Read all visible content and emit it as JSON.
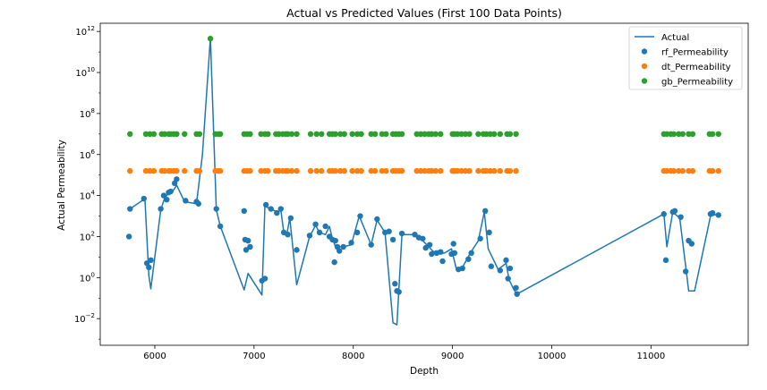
{
  "chart_data": {
    "type": "scatter",
    "title": "Actual vs Predicted Values (First 100 Data Points)",
    "xlabel": "Depth",
    "ylabel": "Actual Permeability",
    "x_scale": "linear",
    "y_scale": "log",
    "xlim": [
      5450,
      11980
    ],
    "ylim_log10": [
      -3.3,
      12.4
    ],
    "x_ticks": [
      6000,
      7000,
      8000,
      9000,
      10000,
      11000
    ],
    "x_tick_labels": [
      "6000",
      "7000",
      "8000",
      "9000",
      "10000",
      "11000"
    ],
    "y_ticks_log10": [
      -2,
      0,
      2,
      4,
      6,
      8,
      10,
      12
    ],
    "y_tick_labels": [
      {
        "base": "10",
        "exp": "−2"
      },
      {
        "base": "10",
        "exp": "0"
      },
      {
        "base": "10",
        "exp": "2"
      },
      {
        "base": "10",
        "exp": "4"
      },
      {
        "base": "10",
        "exp": "6"
      },
      {
        "base": "10",
        "exp": "8"
      },
      {
        "base": "10",
        "exp": "10"
      },
      {
        "base": "10",
        "exp": "12"
      }
    ],
    "grid": false,
    "legend_position": "top-right",
    "legend": [
      {
        "label": "Actual",
        "kind": "line",
        "color": "#1f77b4"
      },
      {
        "label": "rf_Permeability",
        "kind": "marker",
        "color": "#1f77b4"
      },
      {
        "label": "dt_Permeability",
        "kind": "marker",
        "color": "#ff7f0e"
      },
      {
        "label": "gb_Permeability",
        "kind": "marker",
        "color": "#2ca02c"
      }
    ],
    "series": [
      {
        "name": "Actual",
        "kind": "line",
        "color": "#1f77b4",
        "points": [
          [
            5750,
            3.35
          ],
          [
            5900,
            3.85
          ],
          [
            5940,
            0.1
          ],
          [
            5960,
            -0.55
          ],
          [
            6060,
            3.3
          ],
          [
            6100,
            3.9
          ],
          [
            6140,
            4.1
          ],
          [
            6180,
            4.2
          ],
          [
            6220,
            4.5
          ],
          [
            6300,
            3.7
          ],
          [
            6420,
            3.6
          ],
          [
            6480,
            6.0
          ],
          [
            6560,
            11.7
          ],
          [
            6620,
            3.3
          ],
          [
            6660,
            2.5
          ],
          [
            6900,
            -0.6
          ],
          [
            6940,
            0.2
          ],
          [
            7080,
            -0.85
          ],
          [
            7110,
            3.5
          ],
          [
            7160,
            3.35
          ],
          [
            7240,
            3.2
          ],
          [
            7270,
            3.3
          ],
          [
            7300,
            2.2
          ],
          [
            7330,
            2.1
          ],
          [
            7360,
            2.9
          ],
          [
            7430,
            -0.35
          ],
          [
            7560,
            2.0
          ],
          [
            7620,
            2.55
          ],
          [
            7660,
            2.2
          ],
          [
            7720,
            2.1
          ],
          [
            7760,
            2.5
          ],
          [
            7790,
            1.9
          ],
          [
            7820,
            1.5
          ],
          [
            7900,
            1.5
          ],
          [
            7980,
            1.6
          ],
          [
            8060,
            3.0
          ],
          [
            8180,
            1.6
          ],
          [
            8240,
            2.8
          ],
          [
            8320,
            2.2
          ],
          [
            8400,
            -2.2
          ],
          [
            8440,
            -2.3
          ],
          [
            8490,
            2.1
          ],
          [
            8620,
            2.1
          ],
          [
            8680,
            1.9
          ],
          [
            8760,
            1.5
          ],
          [
            8800,
            1.3
          ],
          [
            8860,
            1.15
          ],
          [
            8920,
            1.2
          ],
          [
            8990,
            1.4
          ],
          [
            9040,
            0.4
          ],
          [
            9100,
            0.5
          ],
          [
            9180,
            1.2
          ],
          [
            9260,
            1.8
          ],
          [
            9320,
            3.2
          ],
          [
            9360,
            1.4
          ],
          [
            9460,
            0.4
          ],
          [
            9540,
            0.7
          ],
          [
            9570,
            -0.1
          ],
          [
            9620,
            -0.6
          ],
          [
            9650,
            -0.8
          ],
          [
            11130,
            3.1
          ],
          [
            11160,
            1.5
          ],
          [
            11220,
            3.2
          ],
          [
            11290,
            2.9
          ],
          [
            11380,
            -0.65
          ],
          [
            11440,
            -0.65
          ],
          [
            11600,
            3.0
          ],
          [
            11680,
            3.1
          ]
        ]
      },
      {
        "name": "rf_Permeability",
        "kind": "marker",
        "color": "#1f77b4",
        "points": [
          [
            5740,
            2.0
          ],
          [
            5750,
            3.35
          ],
          [
            5890,
            3.85
          ],
          [
            5920,
            0.7
          ],
          [
            5940,
            0.5
          ],
          [
            5960,
            0.85
          ],
          [
            6060,
            3.35
          ],
          [
            6090,
            4.0
          ],
          [
            6120,
            3.8
          ],
          [
            6140,
            4.15
          ],
          [
            6160,
            4.2
          ],
          [
            6200,
            4.6
          ],
          [
            6220,
            4.8
          ],
          [
            6310,
            3.75
          ],
          [
            6420,
            3.7
          ],
          [
            6440,
            3.6
          ],
          [
            6620,
            3.35
          ],
          [
            6660,
            2.5
          ],
          [
            6900,
            3.25
          ],
          [
            6910,
            1.85
          ],
          [
            6920,
            1.35
          ],
          [
            6940,
            1.8
          ],
          [
            6960,
            1.5
          ],
          [
            7080,
            -0.15
          ],
          [
            7110,
            -0.05
          ],
          [
            7120,
            3.55
          ],
          [
            7170,
            3.35
          ],
          [
            7230,
            3.15
          ],
          [
            7270,
            3.35
          ],
          [
            7300,
            2.2
          ],
          [
            7340,
            2.1
          ],
          [
            7370,
            2.9
          ],
          [
            7430,
            1.35
          ],
          [
            7560,
            2.05
          ],
          [
            7620,
            2.6
          ],
          [
            7660,
            2.2
          ],
          [
            7720,
            2.5
          ],
          [
            7760,
            2.0
          ],
          [
            7790,
            1.85
          ],
          [
            7820,
            1.8
          ],
          [
            7810,
            0.75
          ],
          [
            7840,
            1.5
          ],
          [
            7860,
            1.3
          ],
          [
            7900,
            1.5
          ],
          [
            7980,
            1.7
          ],
          [
            8040,
            2.2
          ],
          [
            8070,
            3.0
          ],
          [
            8180,
            1.6
          ],
          [
            8240,
            2.85
          ],
          [
            8320,
            2.2
          ],
          [
            8360,
            2.25
          ],
          [
            8400,
            1.85
          ],
          [
            8420,
            -0.3
          ],
          [
            8440,
            -0.65
          ],
          [
            8460,
            -0.7
          ],
          [
            8490,
            2.15
          ],
          [
            8620,
            2.1
          ],
          [
            8660,
            1.95
          ],
          [
            8700,
            1.9
          ],
          [
            8730,
            1.45
          ],
          [
            8770,
            1.6
          ],
          [
            8790,
            1.15
          ],
          [
            8840,
            1.2
          ],
          [
            8880,
            1.25
          ],
          [
            8900,
            0.8
          ],
          [
            8990,
            1.15
          ],
          [
            9010,
            1.65
          ],
          [
            9020,
            1.2
          ],
          [
            9060,
            0.4
          ],
          [
            9100,
            0.45
          ],
          [
            9160,
            0.9
          ],
          [
            9190,
            1.2
          ],
          [
            9280,
            1.9
          ],
          [
            9330,
            3.25
          ],
          [
            9370,
            2.2
          ],
          [
            9390,
            0.55
          ],
          [
            9480,
            0.35
          ],
          [
            9540,
            0.85
          ],
          [
            9560,
            -0.05
          ],
          [
            9580,
            0.45
          ],
          [
            9640,
            -0.5
          ],
          [
            9650,
            -0.8
          ],
          [
            11130,
            3.1
          ],
          [
            11150,
            0.85
          ],
          [
            11220,
            3.2
          ],
          [
            11240,
            3.25
          ],
          [
            11300,
            2.95
          ],
          [
            11350,
            0.3
          ],
          [
            11380,
            1.8
          ],
          [
            11410,
            1.65
          ],
          [
            11600,
            3.1
          ],
          [
            11620,
            3.15
          ],
          [
            11680,
            3.05
          ]
        ]
      },
      {
        "name": "dt_Permeability",
        "kind": "marker",
        "color": "#ff7f0e",
        "x": [
          5750,
          5910,
          5950,
          5990,
          6070,
          6100,
          6140,
          6160,
          6190,
          6220,
          6300,
          6420,
          6450,
          6610,
          6640,
          6660,
          6900,
          6930,
          6960,
          7070,
          7110,
          7140,
          7220,
          7250,
          7290,
          7320,
          7340,
          7380,
          7430,
          7570,
          7630,
          7680,
          7760,
          7790,
          7820,
          7870,
          7910,
          7990,
          8040,
          8080,
          8180,
          8220,
          8290,
          8330,
          8400,
          8430,
          8460,
          8490,
          8640,
          8680,
          8720,
          8760,
          8790,
          8830,
          8880,
          9000,
          9020,
          9050,
          9090,
          9130,
          9170,
          9260,
          9310,
          9340,
          9380,
          9420,
          9480,
          9550,
          9580,
          9640,
          11130,
          11160,
          11200,
          11230,
          11280,
          11320,
          11380,
          11420,
          11590,
          11620,
          11680
        ],
        "y_log10": 5.2
      },
      {
        "name": "gb_Permeability",
        "kind": "marker",
        "color": "#2ca02c",
        "x": [
          5750,
          5910,
          5950,
          5990,
          6070,
          6100,
          6140,
          6160,
          6190,
          6220,
          6300,
          6420,
          6450,
          6610,
          6640,
          6660,
          6900,
          6930,
          6960,
          7070,
          7110,
          7140,
          7220,
          7250,
          7290,
          7320,
          7340,
          7380,
          7430,
          7570,
          7630,
          7680,
          7760,
          7790,
          7820,
          7870,
          7910,
          7990,
          8040,
          8080,
          8180,
          8220,
          8290,
          8330,
          8400,
          8430,
          8460,
          8490,
          8640,
          8680,
          8720,
          8760,
          8790,
          8830,
          8880,
          9000,
          9020,
          9050,
          9090,
          9130,
          9170,
          9260,
          9310,
          9340,
          9380,
          9420,
          9480,
          9550,
          9580,
          9640,
          11130,
          11160,
          11200,
          11230,
          11280,
          11320,
          11380,
          11420,
          11590,
          11620,
          11680
        ],
        "y_log10": 7.0,
        "outliers": [
          [
            6560,
            11.65
          ]
        ]
      }
    ]
  }
}
